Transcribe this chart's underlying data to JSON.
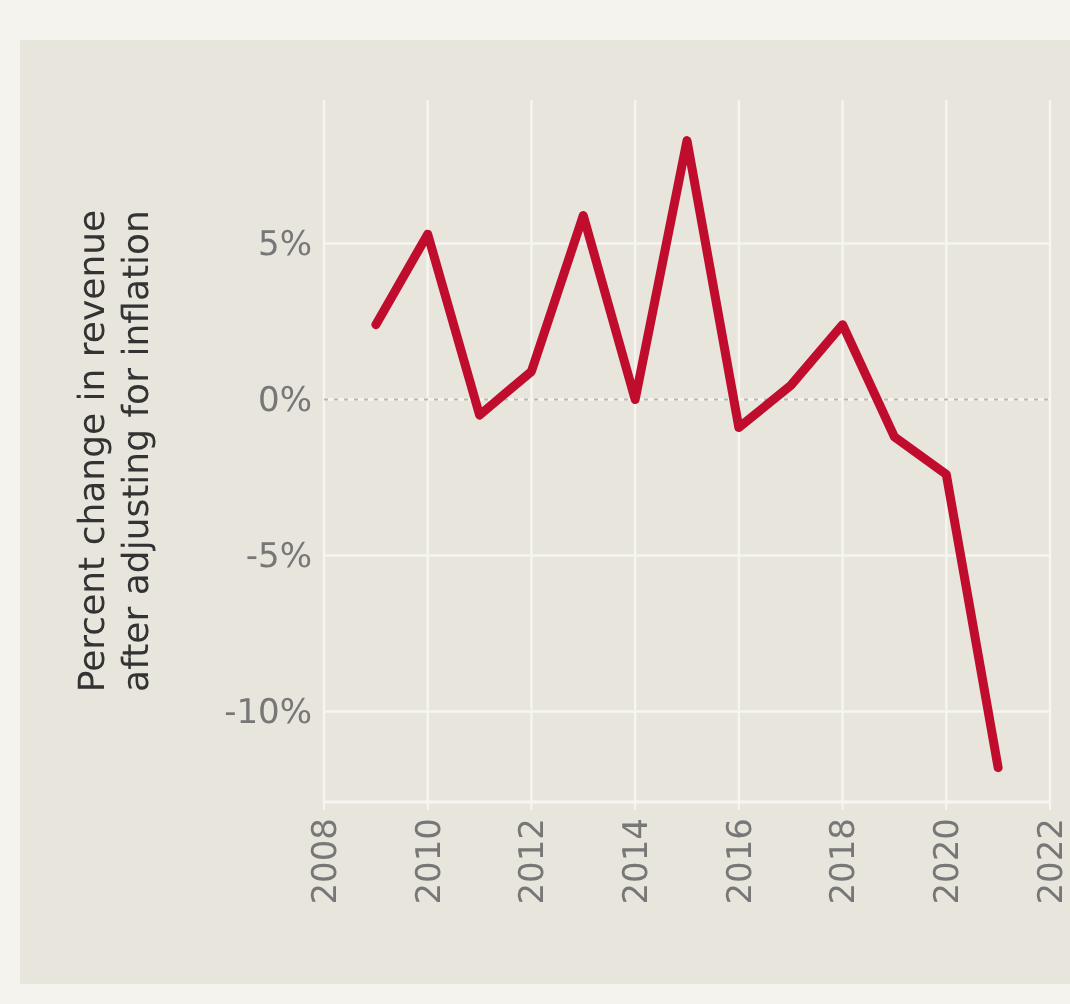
{
  "chart_data": {
    "type": "line",
    "ylabel": "Percent change in revenue after adjusting for inflation",
    "x": [
      2009,
      2010,
      2011,
      2012,
      2013,
      2014,
      2015,
      2016,
      2017,
      2018,
      2019,
      2020,
      2021
    ],
    "series": [
      {
        "color": "#c00d2e",
        "values": [
          2.4,
          5.3,
          -0.5,
          0.9,
          5.9,
          0.0,
          8.3,
          -0.9,
          0.45,
          2.4,
          -1.2,
          -2.4,
          -11.8
        ]
      }
    ],
    "xlim": [
      2008,
      2022
    ],
    "xticks": [
      2008,
      2010,
      2012,
      2014,
      2016,
      2018,
      2020,
      2022
    ],
    "ylim": [
      -12.9,
      9.6
    ],
    "yticks": [
      {
        "value": 5,
        "label": "5%"
      },
      {
        "value": 0,
        "label": "0%"
      },
      {
        "value": -5,
        "label": "-5%"
      },
      {
        "value": -10,
        "label": "-10%"
      }
    ],
    "ref_lines": [
      {
        "axis": "y",
        "value": 0,
        "line_style": "dotted",
        "color": "#b8b5ad"
      }
    ],
    "grid": true,
    "marker": "none",
    "line_style": "solid"
  }
}
